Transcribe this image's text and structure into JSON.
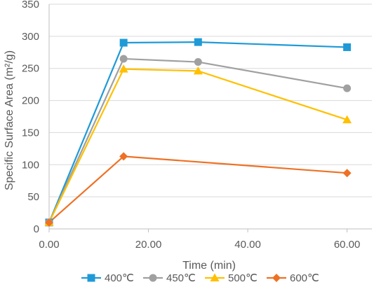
{
  "chart_data": {
    "type": "line",
    "title": "",
    "xlabel": "Time (min)",
    "ylabel": "Specific Surface Area (m²/g)",
    "x_ticks": [
      "0.00",
      "20.00",
      "40.00",
      "60.00"
    ],
    "y_ticks": [
      "0",
      "50",
      "100",
      "150",
      "200",
      "250",
      "300",
      "350"
    ],
    "xlim": [
      0,
      65
    ],
    "ylim": [
      0,
      350
    ],
    "grid": "horizontal",
    "legend_position": "bottom",
    "series": [
      {
        "name": "400℃",
        "color": "#1f9ad7",
        "marker": "square",
        "x": [
          0,
          15,
          30,
          60
        ],
        "y": [
          10,
          290,
          291,
          283
        ]
      },
      {
        "name": "450℃",
        "color": "#a0a0a0",
        "marker": "circle",
        "x": [
          0,
          15,
          30,
          60
        ],
        "y": [
          10,
          265,
          260,
          219
        ]
      },
      {
        "name": "500℃",
        "color": "#ffc000",
        "marker": "triangle",
        "x": [
          0,
          15,
          30,
          60
        ],
        "y": [
          10,
          249,
          246,
          170
        ]
      },
      {
        "name": "600℃",
        "color": "#ee7124",
        "marker": "diamond",
        "x": [
          0,
          15,
          60
        ],
        "y": [
          10,
          113,
          87
        ]
      }
    ]
  }
}
